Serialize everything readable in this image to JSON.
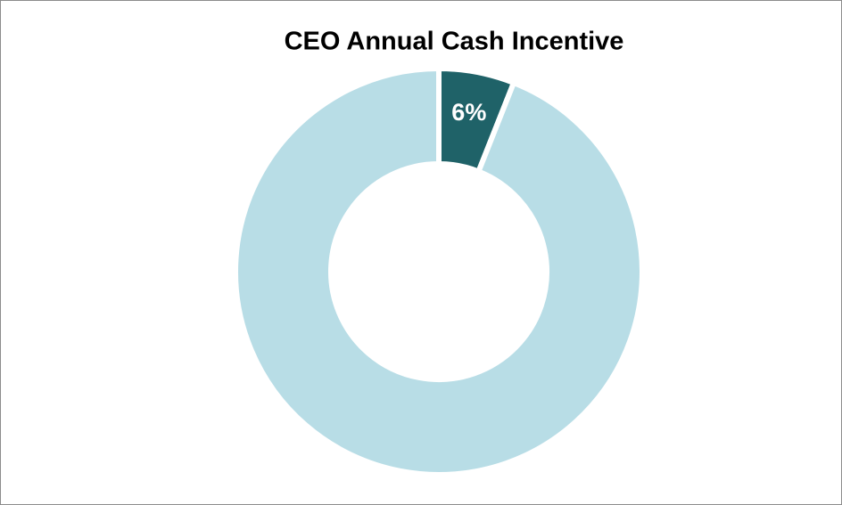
{
  "chart_data": {
    "type": "donut",
    "title": "CEO Annual Cash Incentive",
    "values": [
      6,
      94
    ],
    "value_labels": [
      "6%",
      null
    ],
    "colors": [
      "#1f6268",
      "#b8dde6"
    ]
  }
}
